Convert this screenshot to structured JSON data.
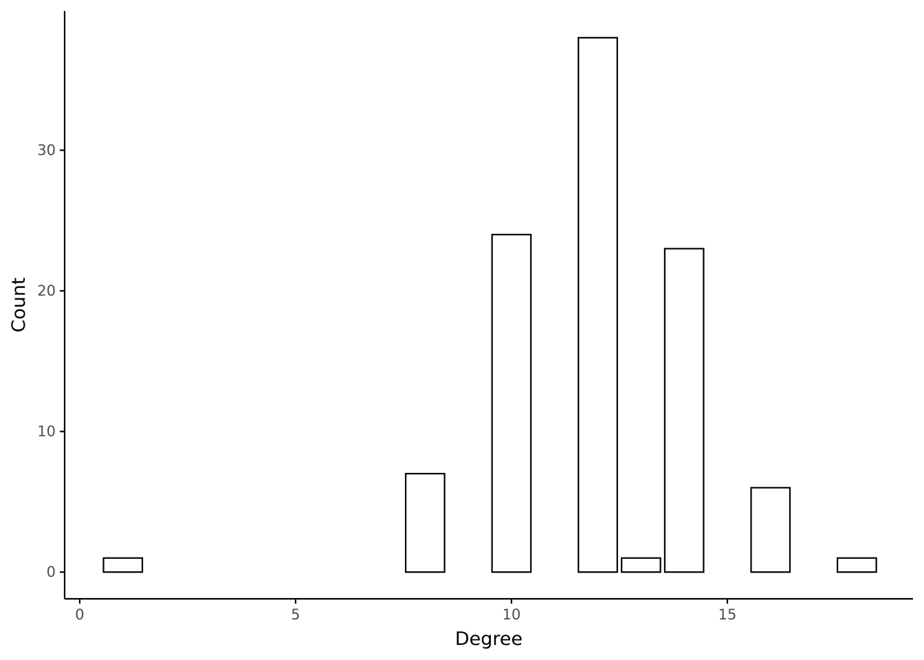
{
  "chart_data": {
    "type": "bar",
    "title": "",
    "xlabel": "Degree",
    "ylabel": "Count",
    "x": [
      1,
      8,
      10,
      12,
      13,
      14,
      16,
      18
    ],
    "values": [
      1,
      7,
      24,
      38,
      1,
      23,
      6,
      1
    ],
    "bar_width": 0.9,
    "xlim": [
      -0.35,
      19.3
    ],
    "ylim": [
      -1.9,
      39.9
    ],
    "x_ticks": [
      0,
      5,
      10,
      15
    ],
    "y_ticks": [
      0,
      10,
      20,
      30
    ],
    "x_tick_labels": [
      "0",
      "5",
      "10",
      "15"
    ],
    "y_tick_labels": [
      "0",
      "10",
      "20",
      "30"
    ],
    "grid": false,
    "legend": "none",
    "bar_fill": "#ffffff",
    "bar_stroke": "#000000",
    "tick_label_color": "#4d4d4d"
  }
}
